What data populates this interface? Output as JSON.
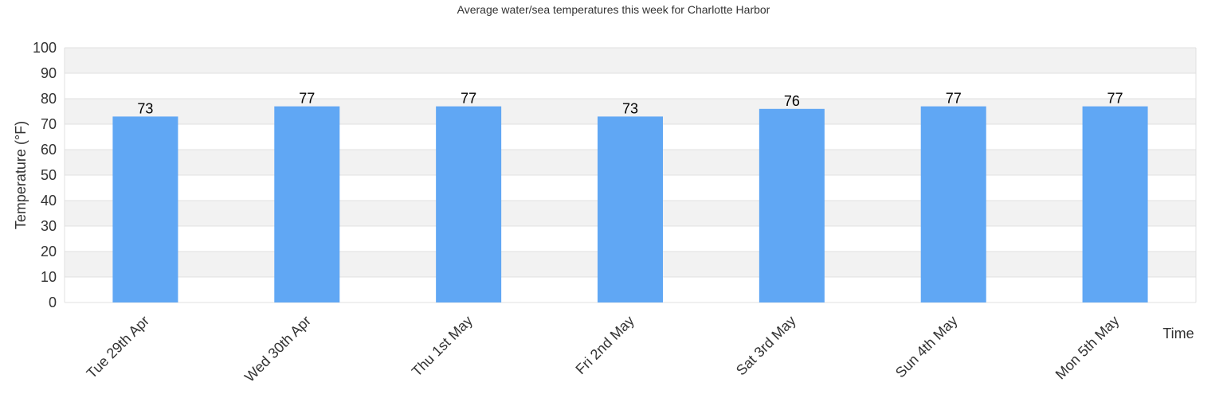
{
  "chart_data": {
    "type": "bar",
    "title": "Average water/sea temperatures this week for Charlotte Harbor",
    "xlabel": "Time",
    "ylabel": "Temperature (°F)",
    "categories": [
      "Tue 29th Apr",
      "Wed 30th Apr",
      "Thu 1st May",
      "Fri 2nd May",
      "Sat 3rd May",
      "Sun 4th May",
      "Mon 5th May"
    ],
    "values": [
      73,
      77,
      77,
      73,
      76,
      77,
      77
    ],
    "ylim": [
      0,
      100
    ],
    "yticks": [
      0,
      10,
      20,
      30,
      40,
      50,
      60,
      70,
      80,
      90,
      100
    ],
    "grid": true,
    "bar_color": "#60a7f4",
    "band_color": "#f2f2f2",
    "grid_color": "#e0e0e0"
  }
}
